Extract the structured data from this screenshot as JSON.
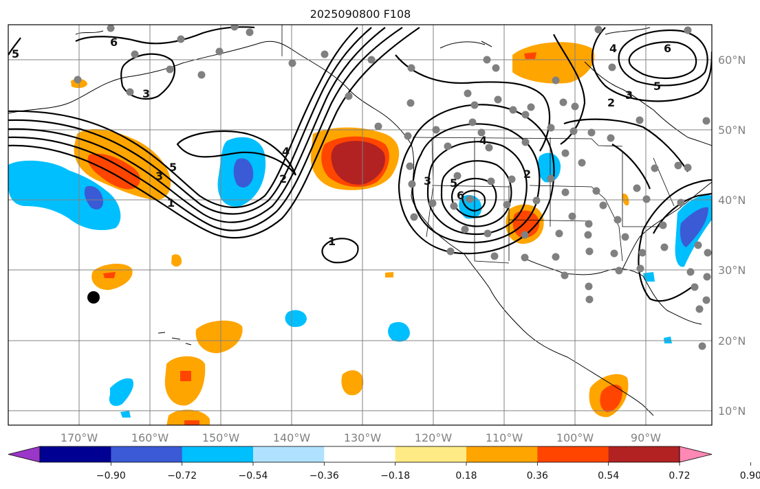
{
  "title": "2025090800 F108",
  "lon_ticks": [
    "170°W",
    "160°W",
    "150°W",
    "140°W",
    "130°W",
    "120°W",
    "110°W",
    "100°W",
    "90°W"
  ],
  "lat_ticks": [
    "60°N",
    "50°N",
    "40°N",
    "30°N",
    "20°N",
    "10°N"
  ],
  "colorbar": {
    "ticks": [
      "−0.90",
      "−0.72",
      "−0.54",
      "−0.36",
      "−0.18",
      "0.18",
      "0.36",
      "0.54",
      "0.72",
      "0.90"
    ],
    "colors": [
      "#9a36c8",
      "#000092",
      "#3b5bd6",
      "#00bfff",
      "#b0e2ff",
      "#ffffff",
      "#ffeb85",
      "#ffa500",
      "#ff4500",
      "#b22222",
      "#ff88b4"
    ]
  },
  "contour_labels": [
    "1",
    "2",
    "3",
    "4",
    "5",
    "6"
  ],
  "palette": {
    "orange": "#ffa500",
    "red": "#ff4500",
    "darkred": "#b22222",
    "cyan": "#00bfff",
    "blue": "#3b5bd6",
    "dot": "#808080"
  }
}
